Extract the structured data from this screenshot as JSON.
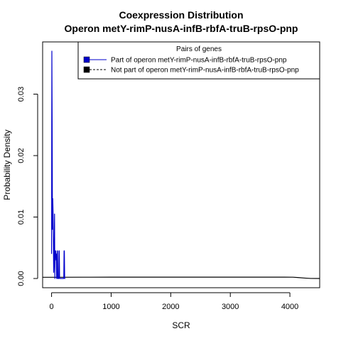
{
  "chart_data": {
    "type": "line",
    "title": "Coexpression Distribution",
    "subtitle": "Operon metY-rimP-nusA-infB-rbfA-truB-rpsO-pnp",
    "xlabel": "SCR",
    "ylabel": "Probability Density",
    "xlim": [
      -150,
      4500
    ],
    "ylim": [
      -0.0015,
      0.0385
    ],
    "x_ticks": [
      0,
      1000,
      2000,
      3000,
      4000
    ],
    "x_tick_labels": [
      "0",
      "1000",
      "2000",
      "3000",
      "4000"
    ],
    "y_ticks": [
      0.0,
      0.01,
      0.02,
      0.03
    ],
    "y_tick_labels": [
      "0.00",
      "0.01",
      "0.02",
      "0.03"
    ],
    "grid": false,
    "legend": {
      "title": "Pairs of genes",
      "position": "top-right"
    },
    "series": [
      {
        "name": "Part of operon metY-rimP-nusA-infB-rbfA-truB-rpsO-pnp",
        "color": "#0000cc",
        "x": [
          0,
          5,
          10,
          15,
          20,
          25,
          30,
          35,
          40,
          45,
          50,
          55,
          60,
          65,
          70,
          75,
          80,
          85,
          90,
          95,
          100,
          105,
          110,
          115,
          120,
          125,
          130,
          135,
          140,
          145,
          150,
          155,
          160,
          165,
          170,
          175,
          180,
          185,
          190,
          195,
          200,
          205,
          210,
          215,
          220,
          225,
          230
        ],
        "y": [
          0.004,
          0.037,
          0.025,
          0.008,
          0.013,
          0.011,
          0.007,
          0.001,
          0.003,
          0.006,
          0.0105,
          0.0,
          0.004,
          0.0045,
          0.0045,
          0.003,
          0.004,
          0.0,
          0.0,
          0.0045,
          0.0045,
          0.0,
          0.0,
          0.0,
          0.0,
          0.0045,
          0.0045,
          0.0,
          0.0,
          0.0,
          0.0,
          0.0,
          0.0,
          0.0,
          0.0,
          0.0,
          0.0,
          0.0,
          0.0,
          0.0,
          0.0,
          0.0,
          0.0045,
          0.0045,
          0.0,
          0.0,
          0.0
        ]
      },
      {
        "name": "Not part of operon metY-rimP-nusA-infB-rbfA-truB-rpsO-pnp",
        "color": "#000000",
        "x": [
          -150,
          0,
          500,
          1000,
          1500,
          2000,
          2500,
          3000,
          3500,
          3900,
          4050,
          4150,
          4250,
          4350,
          4500
        ],
        "y": [
          0.0002,
          0.0002,
          0.00021,
          0.00022,
          0.00022,
          0.00022,
          0.00022,
          0.00022,
          0.00022,
          0.00022,
          0.00021,
          0.00015,
          7e-05,
          1e-05,
          0.0
        ]
      }
    ]
  }
}
